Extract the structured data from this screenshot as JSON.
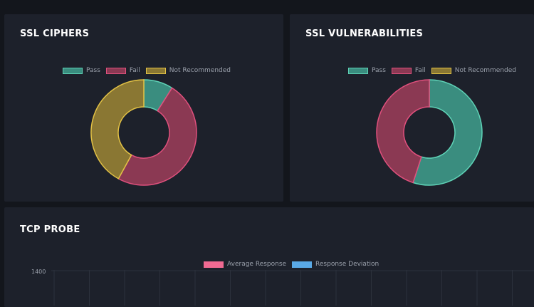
{
  "panels": {
    "ssl_ciphers": {
      "title": "SSL CIPHERS",
      "legend": [
        {
          "label": "Pass",
          "color": "#3a8d7f",
          "border": "#5fd3b7"
        },
        {
          "label": "Fail",
          "color": "#8b3953",
          "border": "#e0507d"
        },
        {
          "label": "Not Recommended",
          "color": "#8a7733",
          "border": "#e3c245"
        }
      ]
    },
    "ssl_vulnerabilities": {
      "title": "SSL VULNERABILITIES",
      "legend": [
        {
          "label": "Pass",
          "color": "#3a8d7f",
          "border": "#5fd3b7"
        },
        {
          "label": "Fail",
          "color": "#8b3953",
          "border": "#e0507d"
        },
        {
          "label": "Not Recommended",
          "color": "#8a7733",
          "border": "#e3c245"
        }
      ]
    },
    "tcp_probe": {
      "title": "TCP PROBE",
      "legend": [
        {
          "label": "Average Response",
          "color": "#f06a92",
          "border": "#f06a92"
        },
        {
          "label": "Response Deviation",
          "color": "#5aa9e6",
          "border": "#5aa9e6"
        }
      ],
      "y_ticks": [
        "1400"
      ]
    }
  },
  "chart_data": [
    {
      "type": "pie",
      "title": "SSL CIPHERS",
      "categories": [
        "Pass",
        "Fail",
        "Not Recommended"
      ],
      "values": [
        9,
        49,
        42
      ],
      "colors": [
        "#3a8d7f",
        "#8b3953",
        "#8a7733"
      ],
      "borders": [
        "#5fd3b7",
        "#e0507d",
        "#e3c245"
      ]
    },
    {
      "type": "pie",
      "title": "SSL VULNERABILITIES",
      "categories": [
        "Pass",
        "Fail",
        "Not Recommended"
      ],
      "values": [
        55,
        45,
        0
      ],
      "colors": [
        "#3a8d7f",
        "#8b3953",
        "#8a7733"
      ],
      "borders": [
        "#5fd3b7",
        "#e0507d",
        "#e3c245"
      ]
    },
    {
      "type": "line",
      "title": "TCP PROBE",
      "series": [
        {
          "name": "Average Response",
          "values": []
        },
        {
          "name": "Response Deviation",
          "values": []
        }
      ],
      "ylim": [
        null,
        1400
      ],
      "grid": true,
      "legend": "top-center"
    }
  ]
}
